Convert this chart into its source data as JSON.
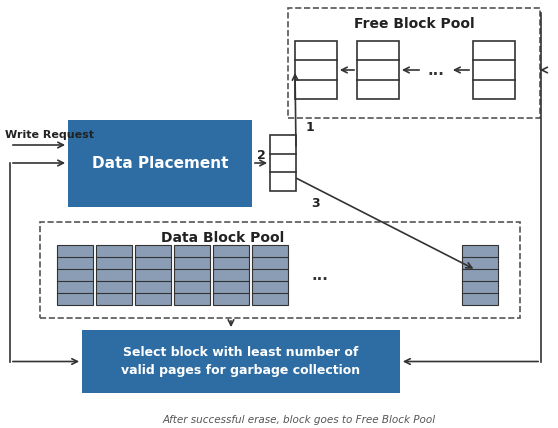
{
  "bg_color": "#ffffff",
  "free_block_pool_label": "Free Block Pool",
  "data_block_pool_label": "Data Block Pool",
  "data_placement_label": "Data Placement",
  "write_request_label": "Write Request",
  "select_block_label": "Select block with least number of\nvalid pages for garbage collection",
  "footer_label": "After successful erase, block goes to Free Block Pool",
  "dp_box_color": "#2e6da4",
  "dp_text_color": "#ffffff",
  "select_box_color": "#2e6da4",
  "select_text_color": "#ffffff",
  "block_fill_color": "#8a9db5",
  "block_edge_color": "#333333",
  "free_block_fill_color": "#ffffff",
  "free_block_edge_color": "#333333",
  "dashed_border_color": "#555555",
  "arrow_color": "#333333",
  "label_color": "#222222"
}
